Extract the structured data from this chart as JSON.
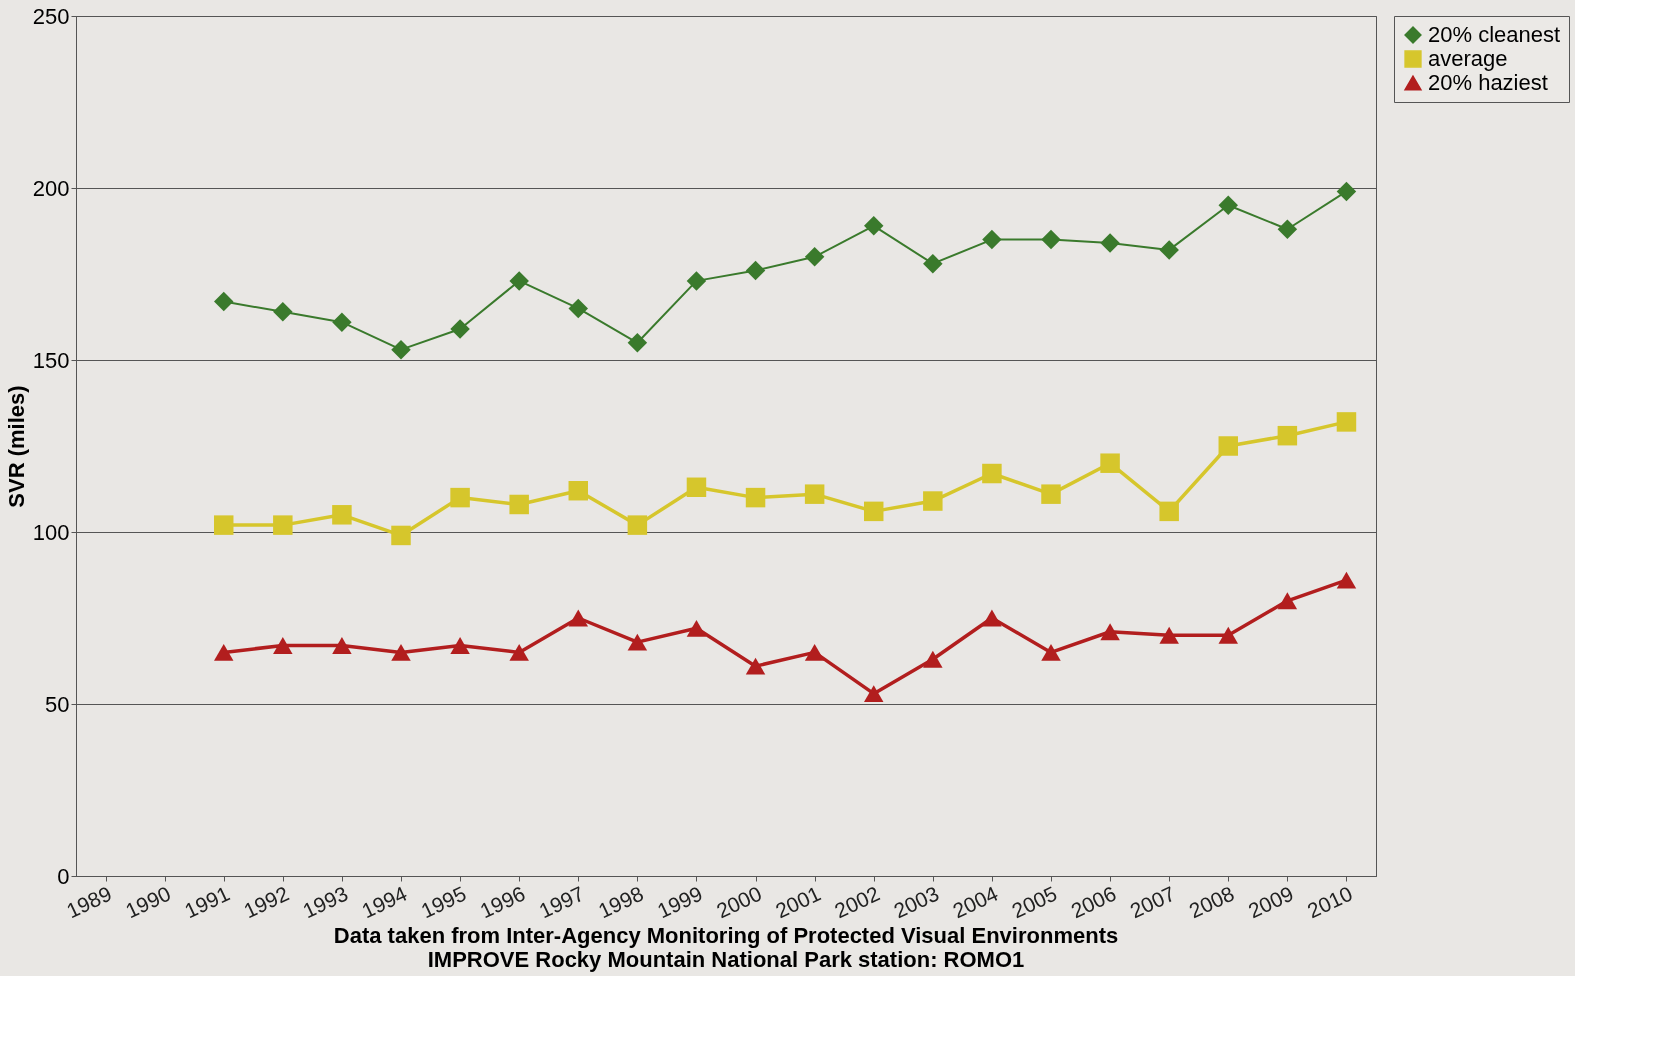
{
  "chart_data": {
    "type": "line",
    "ylabel": "SVR (miles)",
    "categories": [
      "1989",
      "1990",
      "1991",
      "1992",
      "1993",
      "1994",
      "1995",
      "1996",
      "1997",
      "1998",
      "1999",
      "2000",
      "2001",
      "2002",
      "2003",
      "2004",
      "2005",
      "2006",
      "2007",
      "2008",
      "2009",
      "2010"
    ],
    "series": [
      {
        "name": "20% cleanest",
        "color": "#3a7a2c",
        "marker": "diamond",
        "values": [
          null,
          null,
          167,
          164,
          161,
          153,
          159,
          173,
          165,
          155,
          173,
          176,
          180,
          189,
          178,
          185,
          185,
          184,
          182,
          195,
          188,
          199
        ]
      },
      {
        "name": "average",
        "color": "#d6c62c",
        "marker": "square",
        "values": [
          null,
          null,
          102,
          102,
          105,
          99,
          110,
          108,
          112,
          102,
          113,
          110,
          111,
          106,
          109,
          117,
          111,
          120,
          106,
          125,
          128,
          132
        ]
      },
      {
        "name": "20% haziest",
        "color": "#b21e1e",
        "marker": "triangle",
        "values": [
          null,
          null,
          65,
          67,
          67,
          65,
          67,
          65,
          75,
          68,
          72,
          61,
          65,
          53,
          63,
          75,
          65,
          71,
          70,
          70,
          80,
          86
        ]
      }
    ],
    "ylim": [
      0,
      250
    ],
    "yticks": [
      0,
      50,
      100,
      150,
      200,
      250
    ],
    "grid": "y",
    "legend": "right",
    "line_style": "solid",
    "annotations": [
      "Data taken from Inter-Agency Monitoring of Protected Visual Environments",
      "IMPROVE Rocky Mountain National Park station:  ROMO1"
    ]
  }
}
